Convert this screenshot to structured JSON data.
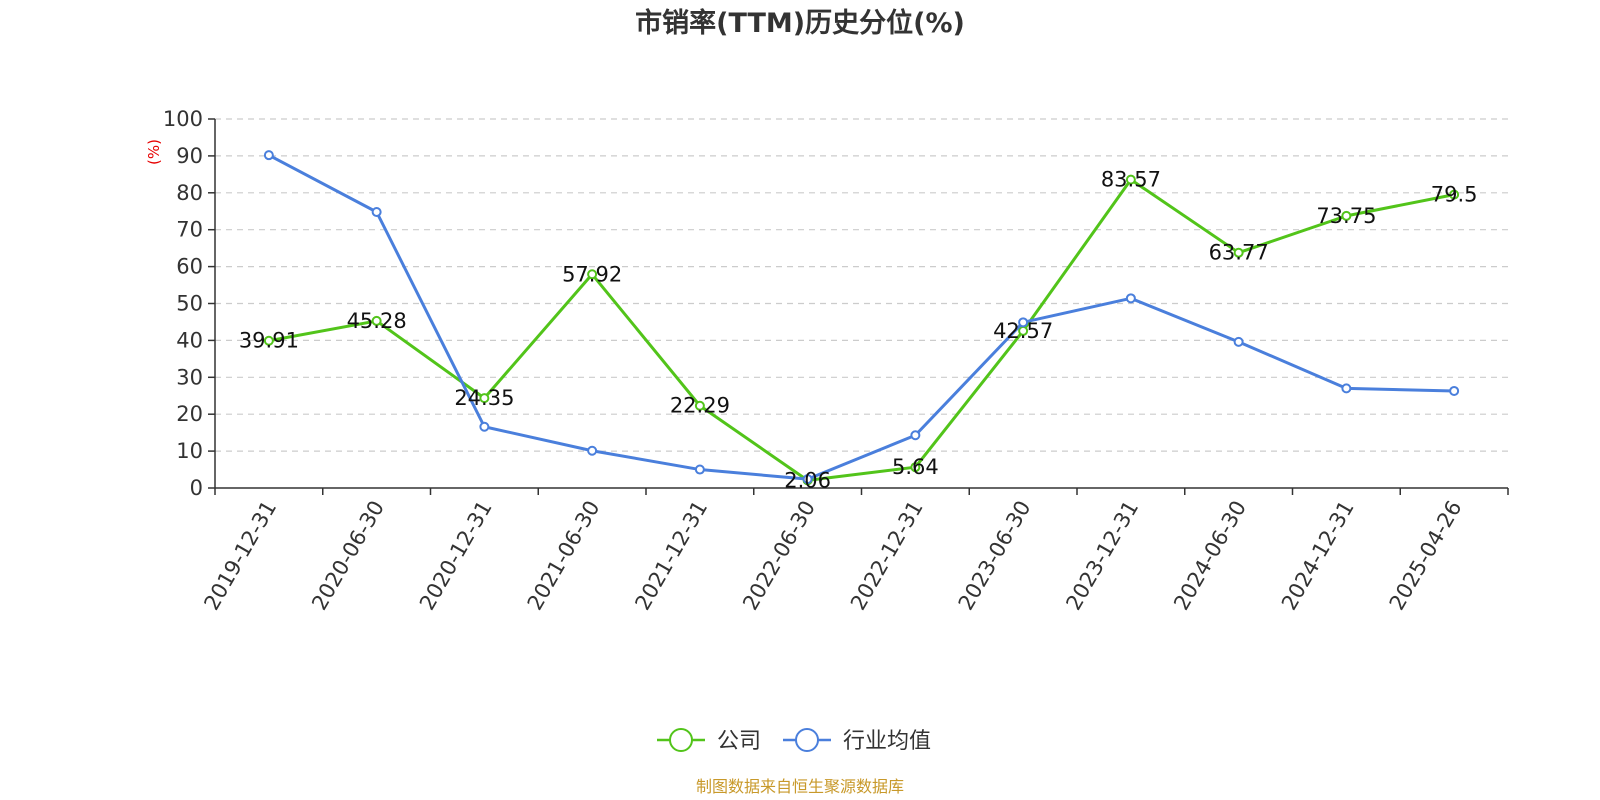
{
  "chart_data": {
    "type": "line",
    "title": "市销率(TTM)历史分位(%)",
    "ylabel": "(%)",
    "ylim": [
      0,
      100
    ],
    "yticks": [
      0,
      10,
      20,
      30,
      40,
      50,
      60,
      70,
      80,
      90,
      100
    ],
    "grid": true,
    "legend_position": "bottom",
    "categories": [
      "2019-12-31",
      "2020-06-30",
      "2020-12-31",
      "2021-06-30",
      "2021-12-31",
      "2022-06-30",
      "2022-12-31",
      "2023-06-30",
      "2023-12-31",
      "2024-06-30",
      "2024-12-31",
      "2025-04-26"
    ],
    "series": [
      {
        "name": "公司",
        "color": "#52c41a",
        "values": [
          39.91,
          45.28,
          24.35,
          57.92,
          22.29,
          2.06,
          5.64,
          42.57,
          83.57,
          63.77,
          73.75,
          79.5
        ],
        "labels": [
          "39.91",
          "45.28",
          "24.35",
          "57.92",
          "22.29",
          "2.06",
          "5.64",
          "42.57",
          "83.57",
          "63.77",
          "73.75",
          "79.5"
        ]
      },
      {
        "name": "行业均值",
        "color": "#4a7fdc",
        "values": [
          90.2,
          74.8,
          16.6,
          10.1,
          5.0,
          2.4,
          14.3,
          44.9,
          51.4,
          39.6,
          27.0,
          26.3
        ]
      }
    ],
    "source": "制图数据来自恒生聚源数据库",
    "source_color": "#c8992a",
    "ylabel_color": "#e60000",
    "grid_color": "#cccccc",
    "axis_color": "#333333"
  }
}
